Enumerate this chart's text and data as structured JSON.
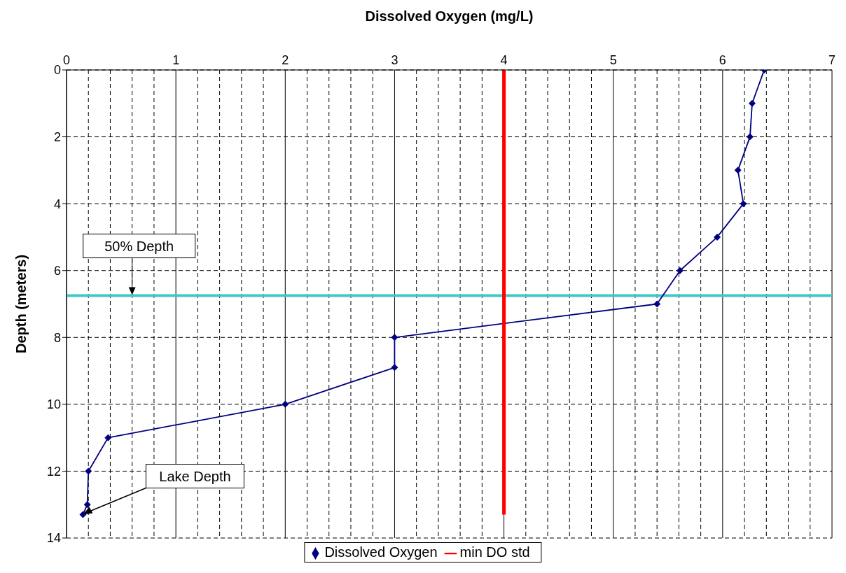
{
  "chart_data": {
    "type": "line",
    "xlabel": "Dissolved Oxygen (mg/L)",
    "ylabel": "Depth (meters)",
    "series": [
      {
        "name": "Dissolved Oxygen",
        "color": "#000080",
        "marker": "diamond",
        "x": [
          6.38,
          6.27,
          6.25,
          6.14,
          6.19,
          5.95,
          5.61,
          5.4,
          3.0,
          3.0,
          2.0,
          0.38,
          0.2,
          0.19,
          0.15
        ],
        "values": [
          0,
          1,
          2,
          3,
          4,
          5,
          6,
          7,
          8,
          8.9,
          10,
          11,
          12,
          13,
          13.3
        ]
      },
      {
        "name": "min DO std",
        "color": "#ff0000",
        "marker": "none",
        "x": [
          4,
          4
        ],
        "values": [
          0,
          13.3
        ]
      }
    ],
    "xlim": [
      0,
      7
    ],
    "xticks": [
      0,
      {
        "value": 0.2,
        "label": null
      },
      {
        "value": 0.4,
        "label": null
      },
      {
        "value": 0.6,
        "label": null
      },
      {
        "value": 0.8,
        "label": null
      },
      1,
      {
        "value": 1.2,
        "label": null
      },
      {
        "value": 1.4,
        "label": null
      },
      {
        "value": 1.6,
        "label": null
      },
      {
        "value": 1.8,
        "label": null
      },
      2,
      {
        "value": 2.2,
        "label": null
      },
      {
        "value": 2.4,
        "label": null
      },
      {
        "value": 2.6,
        "label": null
      },
      {
        "value": 2.8,
        "label": null
      },
      3,
      {
        "value": 3.2,
        "label": null
      },
      {
        "value": 3.4,
        "label": null
      },
      {
        "value": 3.6,
        "label": null
      },
      {
        "value": 3.8,
        "label": null
      },
      4,
      {
        "value": 4.2,
        "label": null
      },
      {
        "value": 4.4,
        "label": null
      },
      {
        "value": 4.6,
        "label": null
      },
      {
        "value": 4.8,
        "label": null
      },
      5,
      {
        "value": 5.2,
        "label": null
      },
      {
        "value": 5.4,
        "label": null
      },
      {
        "value": 5.6,
        "label": null
      },
      {
        "value": 5.8,
        "label": null
      },
      6,
      {
        "value": 6.2,
        "label": null
      },
      {
        "value": 6.4,
        "label": null
      },
      {
        "value": 6.6,
        "label": null
      },
      {
        "value": 6.8,
        "label": null
      },
      7
    ],
    "ylim": [
      14,
      0
    ],
    "yticks": [
      0,
      2,
      4,
      6,
      8,
      10,
      12,
      14
    ],
    "ref_lines": [
      {
        "axis": "y",
        "value": 6.75,
        "label": "50% Depth",
        "color": "#40c8c8"
      }
    ],
    "annotations": [
      {
        "text": "Lake Depth",
        "x": 0.15,
        "y": 13.3
      }
    ],
    "grid": true,
    "legend": "bottom",
    "line_style": "solid"
  }
}
